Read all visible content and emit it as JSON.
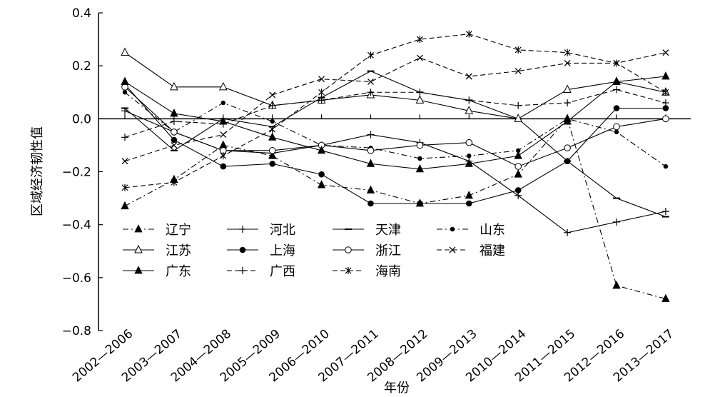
{
  "chart_data": {
    "type": "line",
    "title": "",
    "xlabel": "年份",
    "ylabel": "区域经济韧性值",
    "ylim": [
      -0.8,
      0.4
    ],
    "yticks": [
      "0.4",
      "0.2",
      "0.0",
      "−0.2",
      "−0.4",
      "−0.6",
      "−0.8"
    ],
    "ytick_values": [
      0.4,
      0.2,
      0.0,
      -0.2,
      -0.4,
      -0.6,
      -0.8
    ],
    "categories": [
      "2002—2006",
      "2003—2007",
      "2004—2008",
      "2005—2009",
      "2006—2010",
      "2007—2011",
      "2008—2012",
      "2009—2013",
      "2010—2014",
      "2011—2015",
      "2012—2016",
      "2013—2017"
    ],
    "grid": false,
    "legend_position": "bottom-left",
    "series": [
      {
        "name": "辽宁",
        "marker": "filled-triangle",
        "dash": "dashdot",
        "values": [
          -0.33,
          -0.23,
          -0.1,
          -0.14,
          -0.25,
          -0.27,
          -0.32,
          -0.29,
          -0.21,
          0.0,
          -0.63,
          -0.68
        ]
      },
      {
        "name": "河北",
        "marker": "plus",
        "dash": "solid",
        "values": [
          0.03,
          -0.05,
          -0.12,
          -0.13,
          -0.1,
          -0.06,
          -0.09,
          -0.16,
          -0.29,
          -0.43,
          -0.39,
          -0.35
        ]
      },
      {
        "name": "天津",
        "marker": "dash",
        "dash": "solid",
        "values": [
          0.04,
          -0.12,
          0.0,
          -0.03,
          0.08,
          0.18,
          0.1,
          0.07,
          0.0,
          -0.16,
          -0.3,
          -0.37
        ]
      },
      {
        "name": "山东",
        "marker": "small-dot",
        "dash": "dashdot",
        "values": [
          0.1,
          -0.05,
          0.06,
          -0.01,
          -0.1,
          -0.11,
          -0.15,
          -0.14,
          -0.12,
          0.0,
          -0.05,
          -0.18
        ]
      },
      {
        "name": "江苏",
        "marker": "open-triangle",
        "dash": "solid",
        "values": [
          0.25,
          0.12,
          0.12,
          0.05,
          0.07,
          0.09,
          0.07,
          0.03,
          0.0,
          0.11,
          0.14,
          0.1
        ]
      },
      {
        "name": "上海",
        "marker": "filled-circle",
        "dash": "solid",
        "values": [
          0.13,
          -0.08,
          -0.18,
          -0.17,
          -0.21,
          -0.32,
          -0.32,
          -0.32,
          -0.27,
          -0.16,
          0.04,
          0.04
        ]
      },
      {
        "name": "浙江",
        "marker": "open-circle",
        "dash": "solid",
        "values": [
          0.12,
          -0.05,
          -0.12,
          -0.12,
          -0.1,
          -0.12,
          -0.1,
          -0.09,
          -0.18,
          -0.11,
          -0.03,
          0.0
        ]
      },
      {
        "name": "福建",
        "marker": "x",
        "dash": "dashed",
        "values": [
          -0.16,
          -0.1,
          -0.06,
          0.09,
          0.15,
          0.14,
          0.23,
          0.16,
          0.18,
          0.21,
          0.21,
          0.25
        ]
      },
      {
        "name": "广东",
        "marker": "filled-triangle",
        "dash": "solid",
        "values": [
          0.14,
          0.02,
          -0.01,
          -0.07,
          -0.12,
          -0.17,
          -0.19,
          -0.17,
          -0.14,
          -0.01,
          0.14,
          0.16
        ]
      },
      {
        "name": "广西",
        "marker": "plus",
        "dash": "dashed",
        "values": [
          -0.07,
          -0.01,
          -0.02,
          0.05,
          0.07,
          0.1,
          0.1,
          0.07,
          0.05,
          0.06,
          0.11,
          0.06
        ]
      },
      {
        "name": "海南",
        "marker": "asterisk",
        "dash": "dashed",
        "values": [
          -0.26,
          -0.24,
          -0.14,
          -0.04,
          0.1,
          0.24,
          0.3,
          0.32,
          0.26,
          0.25,
          0.21,
          0.1
        ]
      }
    ]
  }
}
